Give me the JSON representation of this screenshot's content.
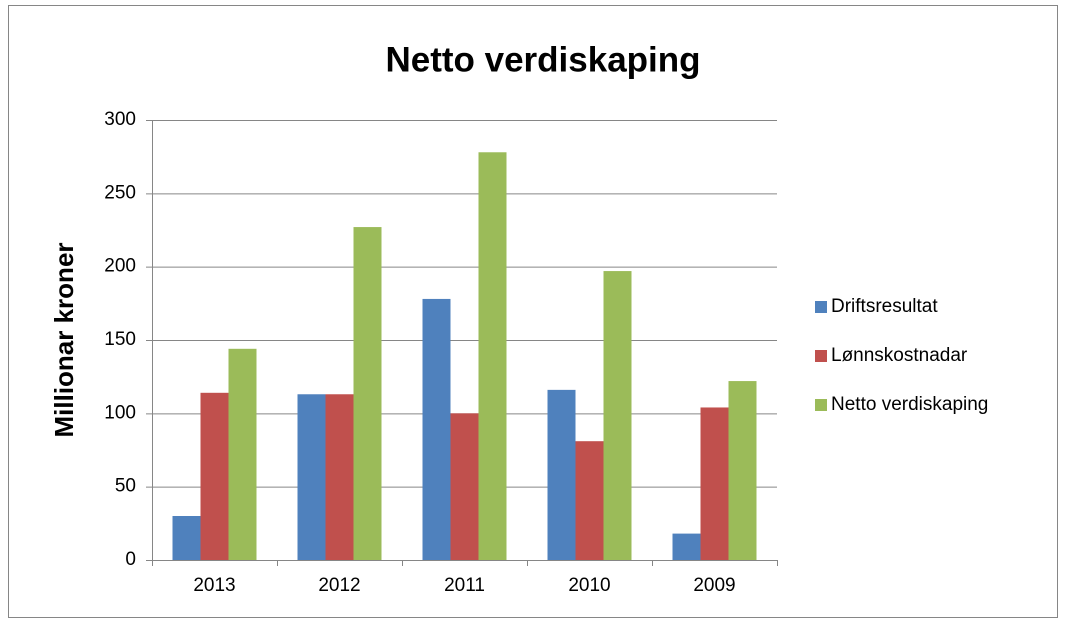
{
  "chart_data": {
    "type": "bar",
    "title": "Netto verdiskaping",
    "y_label": "Millionar kroner",
    "categories": [
      "2013",
      "2012",
      "2011",
      "2010",
      "2009"
    ],
    "series": [
      {
        "name": "Driftsresultat",
        "color": "#4f81bd",
        "values": [
          30,
          113,
          178,
          116,
          18
        ]
      },
      {
        "name": "Lønnskostnadar",
        "color": "#c0504d",
        "values": [
          114,
          113,
          100,
          81,
          104
        ]
      },
      {
        "name": "Netto verdiskaping",
        "color": "#9bbb59",
        "values": [
          144,
          227,
          278,
          197,
          122
        ]
      }
    ],
    "ylim": [
      0,
      300
    ],
    "yticks": [
      0,
      50,
      100,
      150,
      200,
      250,
      300
    ],
    "grid": true,
    "legend": "right"
  }
}
